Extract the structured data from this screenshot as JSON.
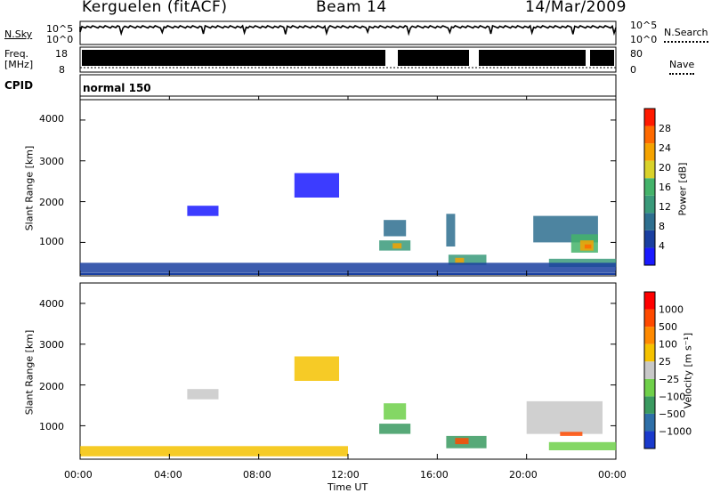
{
  "header": {
    "station": "Kerguelen (fitACF)",
    "beam": "Beam 14",
    "date": "14/Mar/2009"
  },
  "panels": {
    "nsky": {
      "label": "N.Sky",
      "ticks": [
        "10^5",
        "10^0"
      ],
      "right_ticks": [
        "10^5",
        "10^0"
      ],
      "right_label": "N.Search"
    },
    "freq": {
      "label": "Freq.",
      "unit": "[MHz]",
      "ticks": [
        "18",
        "8"
      ],
      "right_ticks": [
        "80",
        "0"
      ],
      "right_label": "Nave"
    },
    "cpid": {
      "label": "CPID",
      "mode": "normal 150"
    }
  },
  "chart_data": [
    {
      "type": "heatmap",
      "name": "power",
      "ylabel": "Slant Range [km]",
      "ylim": [
        180,
        4500
      ],
      "yticks": [
        "4000",
        "3000",
        "2000",
        "1000"
      ],
      "colorbar": {
        "label": "Power [dB]",
        "ticks": [
          "28",
          "24",
          "20",
          "16",
          "12",
          "8",
          "4"
        ],
        "colors": [
          "#1a1aff",
          "#1a3fa0",
          "#2e6f8f",
          "#3a9a7a",
          "#44b36a",
          "#d9d22a",
          "#f5a300",
          "#ff6a00",
          "#ff1a00"
        ]
      },
      "cells": [
        {
          "t": [
            13.6,
            14.6
          ],
          "r": [
            1150,
            1550
          ],
          "level": 2
        },
        {
          "t": [
            13.4,
            14.8
          ],
          "r": [
            800,
            1050
          ],
          "level": 3
        },
        {
          "t": [
            14.0,
            14.4
          ],
          "r": [
            850,
            980
          ],
          "level": 6
        },
        {
          "t": [
            16.4,
            16.8
          ],
          "r": [
            900,
            1700
          ],
          "level": 2
        },
        {
          "t": [
            16.5,
            18.2
          ],
          "r": [
            450,
            700
          ],
          "level": 3
        },
        {
          "t": [
            16.8,
            17.2
          ],
          "r": [
            500,
            620
          ],
          "level": 6
        },
        {
          "t": [
            20.3,
            23.2
          ],
          "r": [
            1000,
            1650
          ],
          "level": 2
        },
        {
          "t": [
            22.0,
            23.2
          ],
          "r": [
            750,
            1200
          ],
          "level": 4
        },
        {
          "t": [
            22.4,
            23.0
          ],
          "r": [
            800,
            1050
          ],
          "level": 6
        },
        {
          "t": [
            22.6,
            22.9
          ],
          "r": [
            850,
            950
          ],
          "level": 7
        },
        {
          "t": [
            21.0,
            24.0
          ],
          "r": [
            400,
            600
          ],
          "level": 3
        },
        {
          "t": [
            0.0,
            24.0
          ],
          "r": [
            250,
            500
          ],
          "level": 1
        },
        {
          "t": [
            9.6,
            11.6
          ],
          "r": [
            2100,
            2700
          ],
          "level": 0
        },
        {
          "t": [
            4.8,
            6.2
          ],
          "r": [
            1650,
            1900
          ],
          "level": 0
        }
      ]
    },
    {
      "type": "heatmap",
      "name": "velocity",
      "ylabel": "Slant Range [km]",
      "ylim": [
        180,
        4500
      ],
      "yticks": [
        "4000",
        "3000",
        "2000",
        "1000"
      ],
      "colorbar": {
        "label": "Velocity [m s⁻¹]",
        "ticks": [
          "1000",
          "500",
          "100",
          "25",
          "−25",
          "−100",
          "−500",
          "−1000"
        ],
        "colors": [
          "#1a3acc",
          "#2e6fa8",
          "#3a9a60",
          "#6fd04a",
          "#c8c8c8",
          "#f5c200",
          "#ff8a00",
          "#ff4a00",
          "#ff0000"
        ]
      },
      "cells": [
        {
          "t": [
            13.6,
            14.6
          ],
          "r": [
            1150,
            1550
          ],
          "level": 3
        },
        {
          "t": [
            13.4,
            14.8
          ],
          "r": [
            800,
            1050
          ],
          "level": 2
        },
        {
          "t": [
            16.4,
            18.2
          ],
          "r": [
            450,
            750
          ],
          "level": 2
        },
        {
          "t": [
            16.8,
            17.4
          ],
          "r": [
            550,
            700
          ],
          "level": 7
        },
        {
          "t": [
            20.0,
            23.4
          ],
          "r": [
            800,
            1600
          ],
          "level": 4
        },
        {
          "t": [
            21.0,
            24.0
          ],
          "r": [
            400,
            600
          ],
          "level": 3
        },
        {
          "t": [
            21.5,
            22.5
          ],
          "r": [
            750,
            850
          ],
          "level": 7
        },
        {
          "t": [
            0.0,
            12.0
          ],
          "r": [
            250,
            500
          ],
          "level": 5
        },
        {
          "t": [
            9.6,
            11.6
          ],
          "r": [
            2100,
            2700
          ],
          "level": 5
        },
        {
          "t": [
            4.8,
            6.2
          ],
          "r": [
            1650,
            1900
          ],
          "level": 4
        }
      ]
    }
  ],
  "xaxis": {
    "label": "Time UT",
    "ticks": [
      "00:00",
      "04:00",
      "08:00",
      "12:00",
      "16:00",
      "20:00",
      "00:00"
    ]
  }
}
